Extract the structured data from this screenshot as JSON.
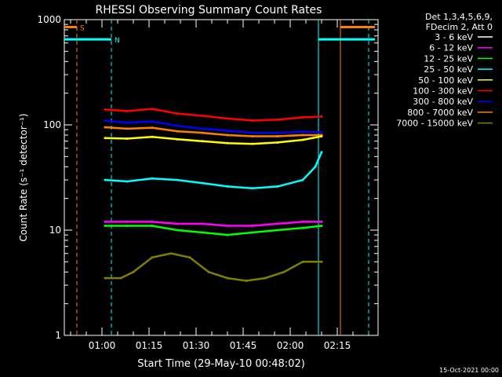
{
  "chart_data": {
    "type": "line",
    "title": "RHESSI Observing Summary Count Rates",
    "xlabel": "Start Time (29-May-10 00:48:02)",
    "ylabel": "Count Rate (s⁻¹ detector⁻¹)",
    "x_unit": "minutes after 00:48:02",
    "xlim": [
      0,
      100
    ],
    "ylim": [
      1,
      1000
    ],
    "yscale": "log",
    "x_ticks": [
      {
        "t": 12,
        "label": "01:00"
      },
      {
        "t": 27,
        "label": "01:15"
      },
      {
        "t": 42,
        "label": "01:30"
      },
      {
        "t": 57,
        "label": "01:45"
      },
      {
        "t": 72,
        "label": "02:00"
      },
      {
        "t": 87,
        "label": "02:15"
      }
    ],
    "y_ticks": [
      {
        "v": 1,
        "label": "1"
      },
      {
        "v": 10,
        "label": "10"
      },
      {
        "v": 100,
        "label": "100"
      },
      {
        "v": 1000,
        "label": "1000"
      }
    ],
    "legend": {
      "header": [
        "Det 1,3,4,5,6,9,",
        "FDecim 2, Att 0"
      ],
      "placement": "right",
      "entries": [
        {
          "label": "3 - 6 keV",
          "color": "#ffffff"
        },
        {
          "label": "6 - 12 keV",
          "color": "#ff00ff"
        },
        {
          "label": "12 - 25 keV",
          "color": "#00ff00"
        },
        {
          "label": "25 - 50 keV",
          "color": "#00ffff"
        },
        {
          "label": "50 - 100 keV",
          "color": "#ffff00"
        },
        {
          "label": "100 - 300 keV",
          "color": "#ff0000"
        },
        {
          "label": "300 - 800 keV",
          "color": "#0000ff"
        },
        {
          "label": "800 - 7000 keV",
          "color": "#ff8000"
        },
        {
          "label": "7000 - 15000 keV",
          "color": "#808000"
        }
      ]
    },
    "series": [
      {
        "name": "100 - 300 keV",
        "color": "#ff0000",
        "x": [
          13,
          20,
          28,
          36,
          44,
          52,
          60,
          68,
          76,
          82
        ],
        "y": [
          140,
          135,
          142,
          128,
          122,
          115,
          110,
          112,
          118,
          120
        ]
      },
      {
        "name": "300 - 800 keV",
        "color": "#0000ff",
        "x": [
          13,
          20,
          28,
          36,
          44,
          52,
          60,
          68,
          76,
          82
        ],
        "y": [
          110,
          105,
          108,
          98,
          92,
          88,
          84,
          84,
          86,
          85
        ]
      },
      {
        "name": "800 - 7000 keV",
        "color": "#ff8000",
        "x": [
          13,
          20,
          28,
          36,
          44,
          52,
          60,
          68,
          76,
          82
        ],
        "y": [
          95,
          92,
          94,
          87,
          84,
          80,
          78,
          78,
          80,
          80
        ]
      },
      {
        "name": "50 - 100 keV",
        "color": "#ffff00",
        "x": [
          13,
          20,
          28,
          36,
          44,
          52,
          60,
          68,
          76,
          82
        ],
        "y": [
          75,
          74,
          77,
          73,
          70,
          67,
          66,
          68,
          72,
          78
        ]
      },
      {
        "name": "25 - 50 keV",
        "color": "#00ffff",
        "x": [
          13,
          20,
          28,
          36,
          44,
          52,
          60,
          68,
          76,
          80,
          82
        ],
        "y": [
          30,
          29,
          31,
          30,
          28,
          26,
          25,
          26,
          30,
          40,
          55
        ]
      },
      {
        "name": "6 - 12 keV",
        "color": "#ff00ff",
        "x": [
          13,
          20,
          28,
          36,
          44,
          52,
          60,
          68,
          76,
          82
        ],
        "y": [
          12,
          12,
          12,
          11.5,
          11.5,
          11,
          11,
          11.5,
          12,
          12
        ]
      },
      {
        "name": "12 - 25 keV",
        "color": "#00ff00",
        "x": [
          13,
          20,
          28,
          36,
          44,
          52,
          60,
          68,
          76,
          82
        ],
        "y": [
          11,
          11,
          11,
          10,
          9.5,
          9,
          9.5,
          10,
          10.5,
          11
        ]
      },
      {
        "name": "7000 - 15000 keV",
        "color": "#808000",
        "x": [
          13,
          18,
          22,
          28,
          34,
          40,
          46,
          52,
          58,
          64,
          70,
          76,
          82
        ],
        "y": [
          3.5,
          3.5,
          4,
          5.5,
          6,
          5.5,
          4,
          3.5,
          3.3,
          3.5,
          4,
          5,
          5
        ]
      }
    ],
    "flags": [
      {
        "label": "S",
        "color": "#ff8000",
        "level": 850,
        "segments": [
          [
            0,
            4
          ],
          [
            88,
            99
          ]
        ]
      },
      {
        "label": "N",
        "color": "#00ffff",
        "level": 650,
        "segments": [
          [
            0,
            15
          ],
          [
            81,
            99
          ]
        ]
      }
    ],
    "vlines": [
      {
        "t": 4,
        "color": "#ff8000",
        "style": "dashed"
      },
      {
        "t": 15,
        "color": "#00ffff",
        "style": "dashed"
      },
      {
        "t": 81,
        "color": "#00ffff",
        "style": "solid"
      },
      {
        "t": 88,
        "color": "#ff8000",
        "style": "solid"
      },
      {
        "t": 97,
        "color": "#00ffff",
        "style": "dashed"
      }
    ],
    "timestamp": "15-Oct-2021 00:00"
  }
}
